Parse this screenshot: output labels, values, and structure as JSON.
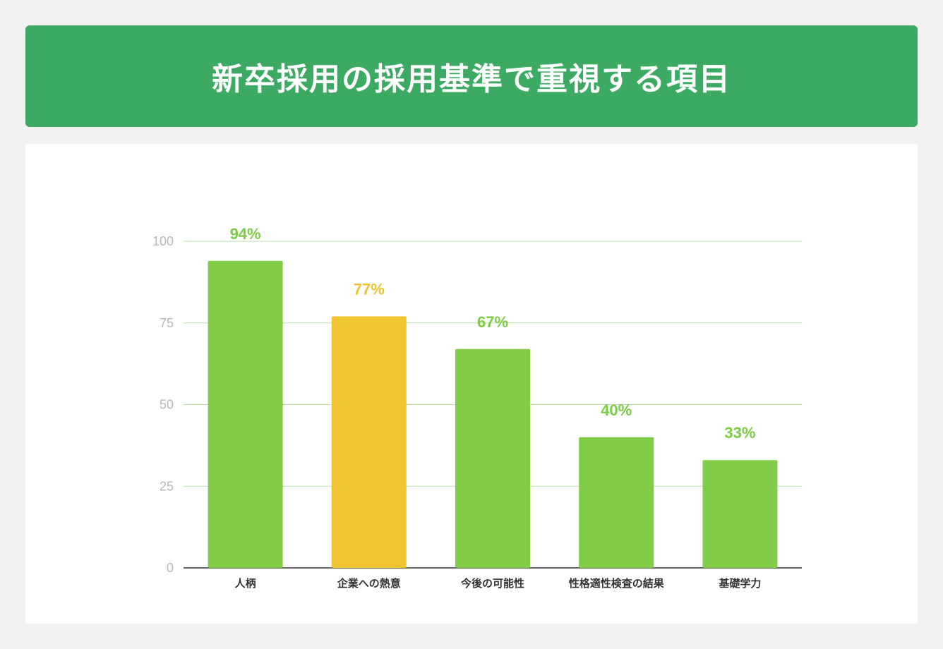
{
  "page": {
    "background": "#f1f1f1"
  },
  "header": {
    "title": "新卒採用の採用基準で重視する項目",
    "background": "#3daa64"
  },
  "chart_data": {
    "type": "bar",
    "title": "新卒採用の採用基準で重視する項目",
    "xlabel": "",
    "ylabel": "",
    "categories": [
      "人柄",
      "企業への熱意",
      "今後の可能性",
      "性格適性検査の結果",
      "基礎学力"
    ],
    "values": [
      94,
      77,
      67,
      40,
      33
    ],
    "data_labels": [
      "94%",
      "77%",
      "67%",
      "40%",
      "33%"
    ],
    "bar_colors": [
      "#82cd47",
      "#f0c431",
      "#82cd47",
      "#82cd47",
      "#82cd47"
    ],
    "label_colors": [
      "#7ccb45",
      "#efc22e",
      "#7ccb45",
      "#7ccb45",
      "#7ccb45"
    ],
    "ylim": [
      0,
      100
    ],
    "yticks": [
      0,
      25,
      50,
      75,
      100
    ],
    "grid": true,
    "grid_color": "#b9dfa8",
    "legend": "none"
  }
}
